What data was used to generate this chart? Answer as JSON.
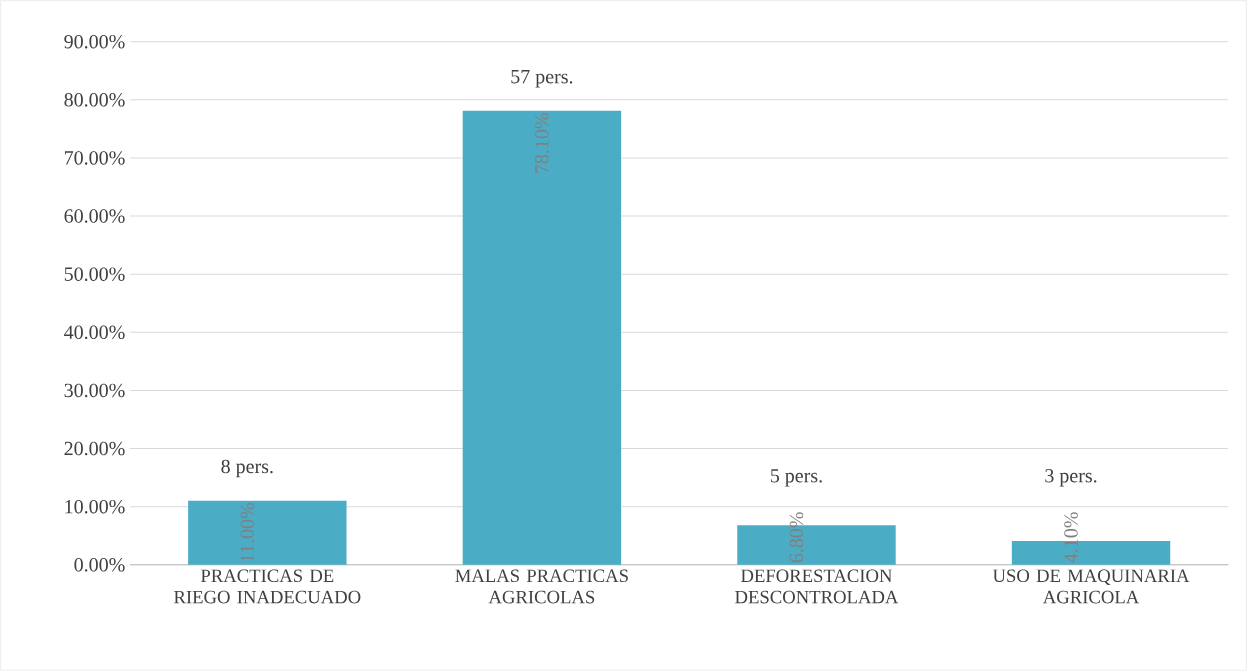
{
  "chart_data": {
    "type": "bar",
    "categories": [
      "PRACTICAS DE RIEGO INADECUADO",
      "MALAS PRACTICAS AGRICOLAS",
      "DEFORESTACION DESCONTROLADA",
      "USO DE MAQUINARIA AGRICOLA"
    ],
    "values": [
      11.0,
      78.1,
      6.8,
      4.1
    ],
    "value_labels": [
      "11.00%",
      "78.10%",
      "6.80%",
      "4.10%"
    ],
    "color": "#4bacc6",
    "ylim": [
      0,
      90
    ],
    "yticks": [
      {
        "value": 0,
        "label": "0.00%"
      },
      {
        "value": 10,
        "label": "10.00%"
      },
      {
        "value": 20,
        "label": "20.00%"
      },
      {
        "value": 30,
        "label": "30.00%"
      },
      {
        "value": 40,
        "label": "40.00%"
      },
      {
        "value": 50,
        "label": "50.00%"
      },
      {
        "value": 60,
        "label": "60.00%"
      },
      {
        "value": 70,
        "label": "70.00%"
      },
      {
        "value": 80,
        "label": "80.00%"
      },
      {
        "value": 90,
        "label": "90.00%"
      }
    ],
    "grid": "y",
    "annotations": [
      "8 pers.",
      "57 pers.",
      "5 pers.",
      "3 pers."
    ]
  }
}
